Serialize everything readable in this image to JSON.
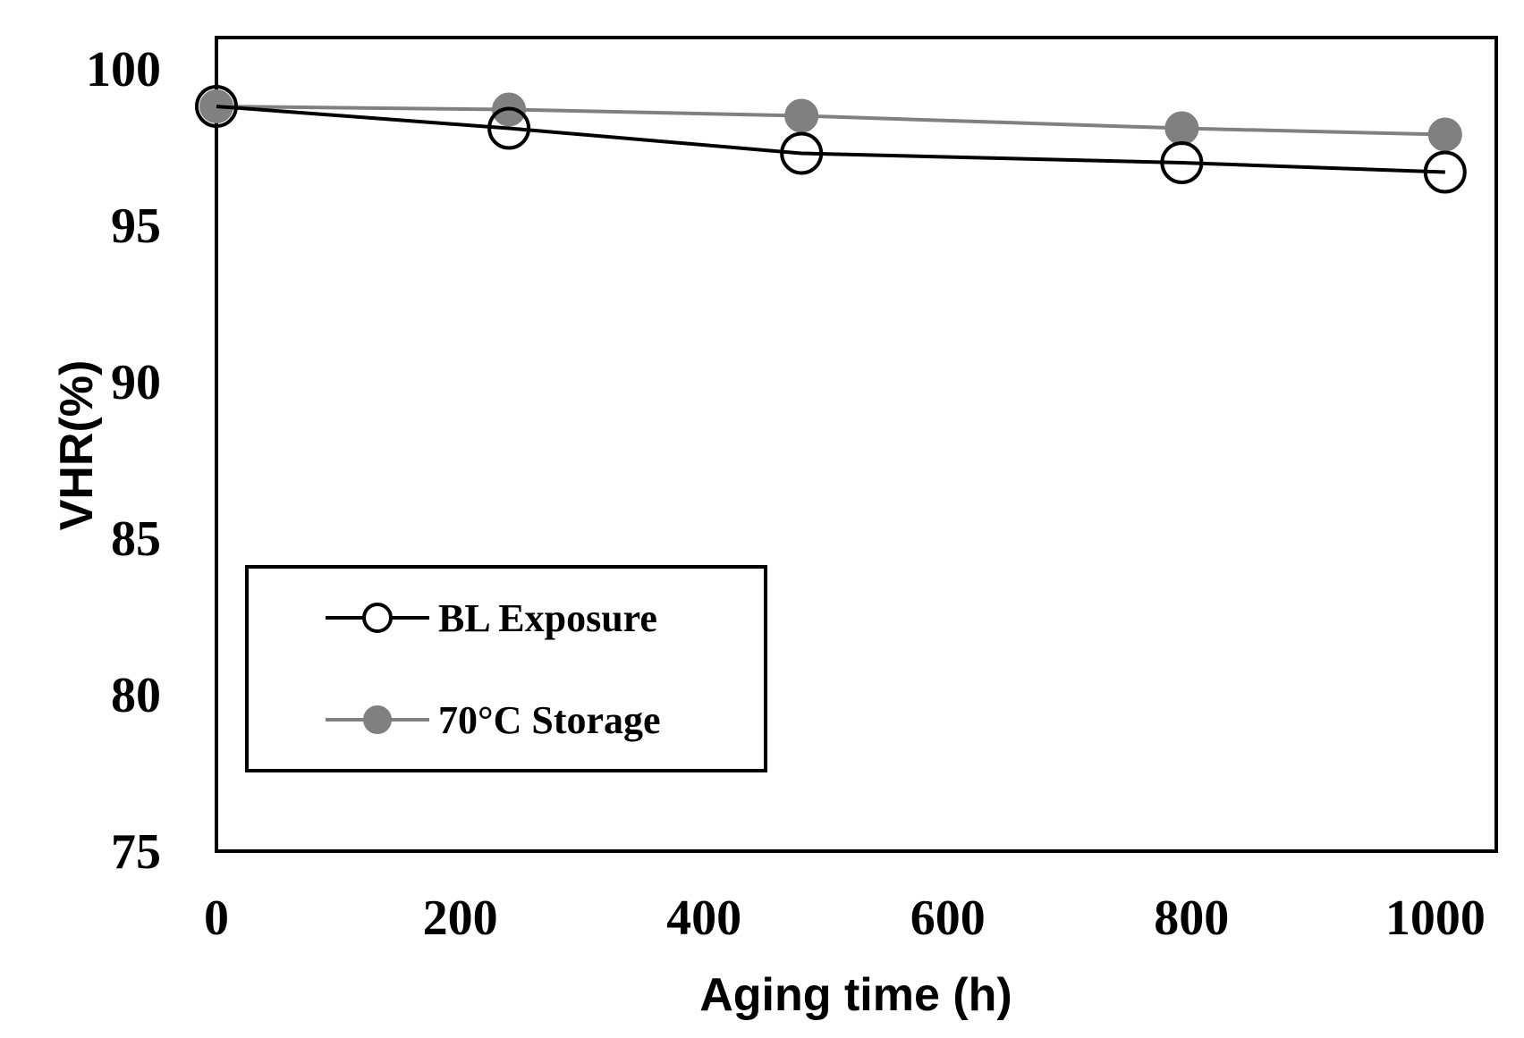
{
  "chart_data": {
    "type": "line",
    "xlabel": "Aging time (h)",
    "ylabel": "VHR(%)",
    "xlim": [
      0,
      1050
    ],
    "ylim": [
      75,
      101
    ],
    "x_ticks": [
      0,
      200,
      400,
      600,
      800,
      1000
    ],
    "y_ticks": [
      75,
      80,
      85,
      90,
      95,
      100
    ],
    "x_tick_labels": [
      "0",
      "200",
      "400",
      "600",
      "800",
      "1000"
    ],
    "y_tick_labels": [
      "75",
      "80",
      "85",
      "90",
      "95",
      "100"
    ],
    "grid": false,
    "legend_position": "lower-left",
    "series": [
      {
        "name": "BL Exposure",
        "color": "#000000",
        "marker": "open-circle",
        "x": [
          0,
          240,
          480,
          792,
          1008
        ],
        "y": [
          98.8,
          98.1,
          97.3,
          97.0,
          96.7
        ]
      },
      {
        "name": "70°C Storage",
        "color": "#808080",
        "marker": "filled-circle",
        "x": [
          0,
          240,
          480,
          792,
          1008
        ],
        "y": [
          98.8,
          98.7,
          98.5,
          98.1,
          97.9
        ]
      }
    ]
  }
}
